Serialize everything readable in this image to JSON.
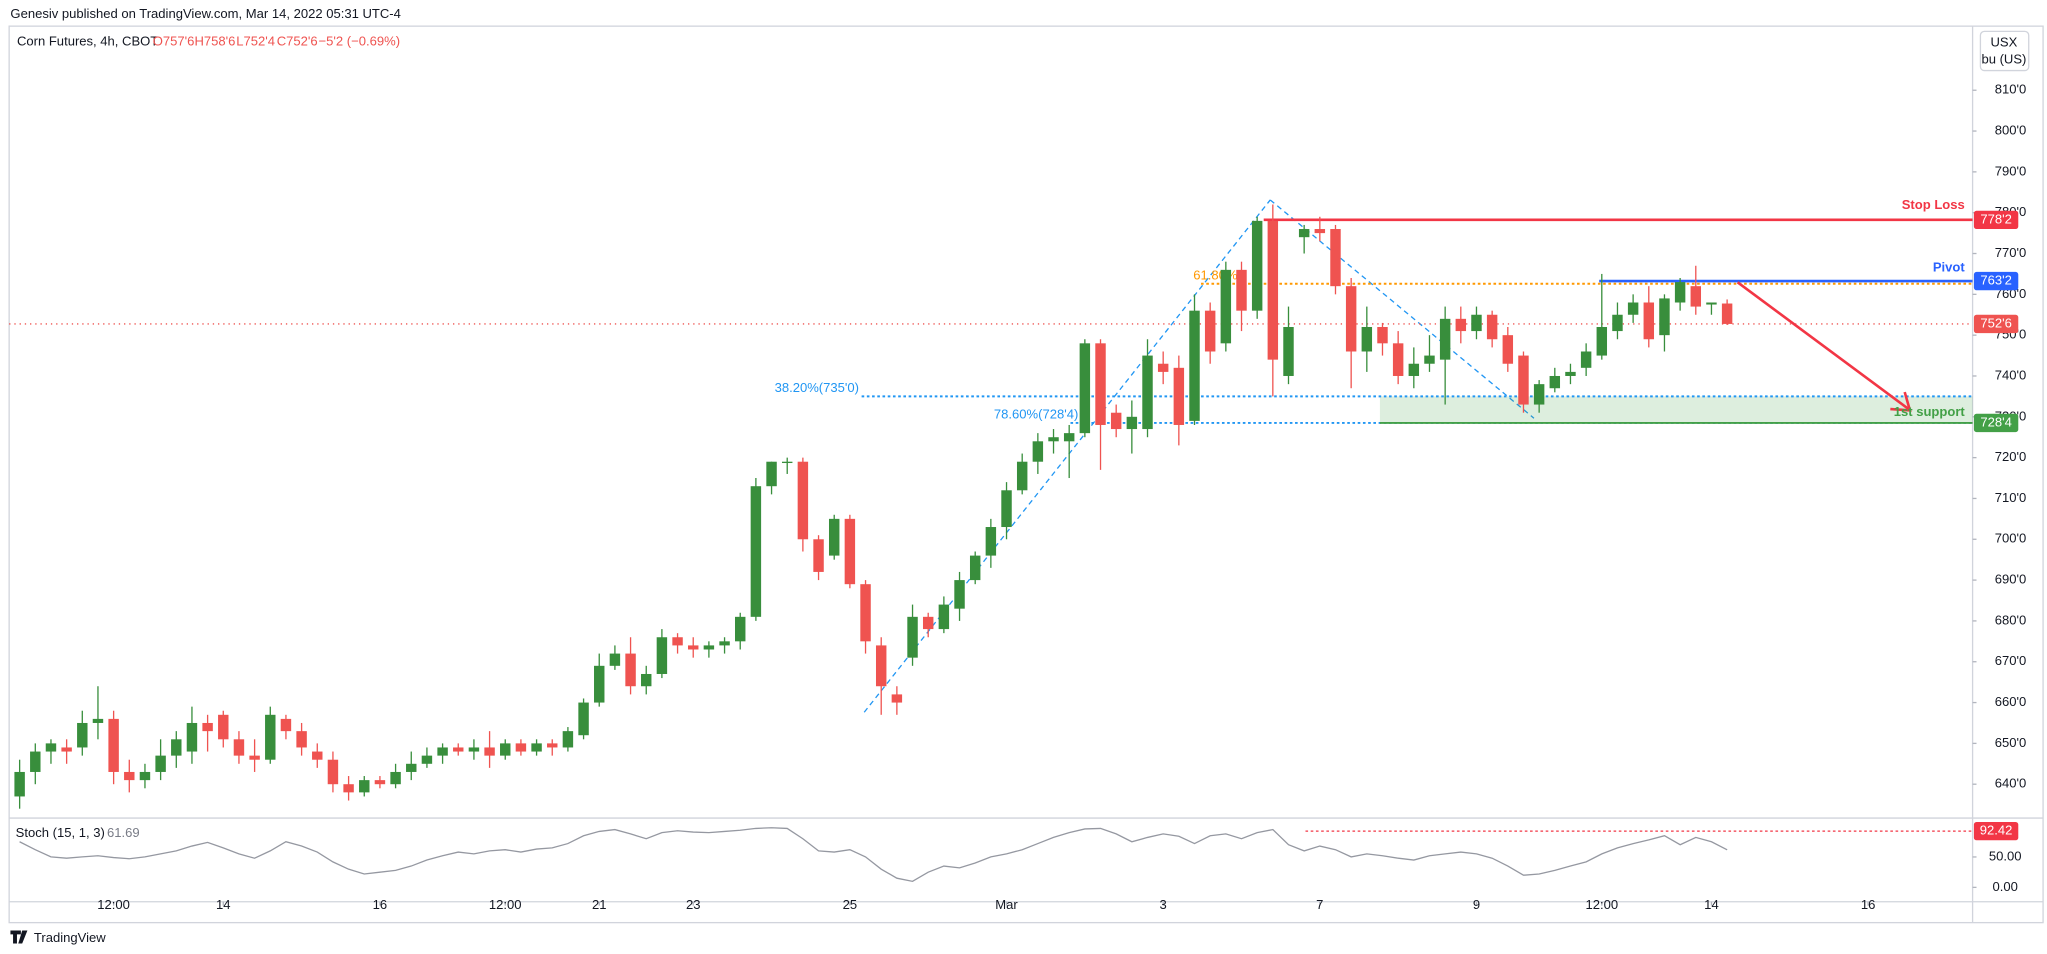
{
  "header": {
    "publisher": "Genesiv published on TradingView.com, Mar 14, 2022 05:31 UTC-4",
    "logo": "TradingView"
  },
  "chart_data": [
    {
      "type": "candlestick",
      "title": "Corn Futures, 4h, CBOT",
      "ohlc_legend": [
        "O757'6",
        "H758'6",
        "L752'4",
        "C752'6",
        "−5'2 (−0.69%)"
      ],
      "currency": "USX",
      "unit": "bu (US)",
      "up_color": "#388e3c",
      "down_color": "#ef5350",
      "open": [
        637,
        643,
        648,
        649,
        649,
        655,
        656,
        643,
        641,
        643,
        647,
        648,
        655,
        657,
        651,
        647,
        646,
        656,
        653,
        648,
        646,
        640,
        638,
        641,
        640,
        643,
        645,
        647,
        649,
        648,
        649,
        647,
        650,
        648,
        650,
        649,
        652,
        660,
        669,
        672,
        664,
        667,
        676,
        674,
        673,
        674,
        675,
        681,
        713,
        719,
        719,
        700,
        696,
        705,
        689,
        674,
        662,
        671,
        681,
        678,
        683,
        690,
        696,
        703,
        712,
        719,
        724,
        724,
        726,
        748,
        731,
        727,
        727,
        743,
        742,
        729,
        756,
        748,
        766,
        756,
        778,
        740,
        774,
        776,
        776,
        762,
        746,
        752,
        748,
        740,
        743,
        744,
        754,
        751,
        755,
        750,
        745,
        733,
        737,
        740,
        742,
        745,
        751,
        755,
        758,
        750,
        758,
        762,
        757.5,
        757.75
      ],
      "high": [
        646,
        650,
        651,
        651,
        658,
        664,
        658,
        646,
        645,
        651,
        653,
        659,
        657,
        658,
        653,
        651,
        659,
        657,
        655,
        650,
        648,
        642,
        642,
        642,
        645,
        648,
        649,
        650,
        650,
        651,
        653,
        651,
        651,
        651,
        651,
        654,
        661,
        672,
        674,
        676,
        669,
        678,
        677,
        676,
        675,
        676,
        682,
        715,
        719,
        720,
        720,
        701,
        706,
        706,
        690,
        676,
        664,
        684,
        682,
        686,
        692,
        697,
        705,
        714,
        721,
        726,
        727,
        728,
        749,
        749,
        733,
        734,
        749,
        746,
        745,
        760,
        758,
        768,
        768,
        779,
        782,
        757,
        777,
        779,
        777,
        764,
        757,
        753,
        751,
        747,
        750,
        757,
        757,
        757,
        756,
        752,
        746,
        739,
        742,
        743,
        748,
        765,
        758,
        760,
        762,
        760,
        764,
        767,
        758,
        758.75
      ],
      "low": [
        634,
        640,
        645,
        645,
        647,
        651,
        640,
        638,
        639,
        641,
        644,
        645,
        648,
        649,
        645,
        643,
        645,
        651,
        647,
        644,
        638,
        636,
        637,
        639,
        639,
        641,
        644,
        645,
        647,
        646,
        644,
        646,
        647,
        647,
        647,
        648,
        651,
        659,
        668,
        662,
        662,
        666,
        672,
        671,
        671,
        672,
        673,
        680,
        711,
        716,
        697,
        690,
        695,
        688,
        672,
        657,
        657,
        669,
        676,
        677,
        680,
        689,
        693,
        700,
        711,
        716,
        721,
        715,
        725,
        717,
        725,
        721,
        725,
        738,
        723,
        728,
        743,
        746,
        751,
        754,
        735,
        738,
        770,
        773,
        760,
        737,
        741,
        745,
        738,
        737,
        741,
        733,
        748,
        749,
        747,
        741,
        731,
        731,
        736,
        738,
        740,
        744,
        749,
        753,
        747,
        746,
        756,
        755,
        755,
        752.5
      ],
      "close": [
        643,
        648,
        650,
        648,
        655,
        656,
        643,
        641,
        643,
        647,
        651,
        655,
        653,
        651,
        647,
        646,
        657,
        653,
        649,
        646,
        640,
        638,
        641,
        640,
        643,
        645,
        647,
        649,
        648,
        649,
        647,
        650,
        648,
        650,
        649,
        653,
        660,
        669,
        672,
        664,
        667,
        676,
        674,
        673,
        674,
        675,
        681,
        713,
        719,
        719,
        700,
        692,
        705,
        689,
        675,
        664,
        660,
        681,
        678,
        684,
        690,
        696,
        703,
        712,
        719,
        724,
        725,
        726,
        748,
        728,
        727,
        730,
        745,
        741,
        728,
        756,
        746,
        766,
        756,
        778,
        744,
        752,
        776,
        775,
        762,
        746,
        752,
        748,
        740,
        743,
        745,
        754,
        751,
        755,
        749,
        743,
        733,
        738,
        740,
        741,
        746,
        752,
        755,
        758,
        749,
        759,
        763,
        757,
        758,
        752.75
      ],
      "xlim": [
        -0.67,
        124.67
      ],
      "xticks": [
        {
          "value": 6,
          "label": "12:00"
        },
        {
          "value": 13,
          "label": "14"
        },
        {
          "value": 23,
          "label": "16"
        },
        {
          "value": 31,
          "label": "12:00"
        },
        {
          "value": 37,
          "label": "21"
        },
        {
          "value": 43,
          "label": "23"
        },
        {
          "value": 53,
          "label": "25"
        },
        {
          "value": 63,
          "label": "Mar"
        },
        {
          "value": 73,
          "label": "3"
        },
        {
          "value": 83,
          "label": "7"
        },
        {
          "value": 93,
          "label": "9"
        },
        {
          "value": 101,
          "label": "12:00"
        },
        {
          "value": 108,
          "label": "14"
        },
        {
          "value": 118,
          "label": "16"
        }
      ],
      "ylim": [
        631.7,
        825.7
      ],
      "yticks": [
        {
          "value": 640,
          "label": "640'0"
        },
        {
          "value": 650,
          "label": "650'0"
        },
        {
          "value": 660,
          "label": "660'0"
        },
        {
          "value": 670,
          "label": "670'0"
        },
        {
          "value": 680,
          "label": "680'0"
        },
        {
          "value": 690,
          "label": "690'0"
        },
        {
          "value": 700,
          "label": "700'0"
        },
        {
          "value": 710,
          "label": "710'0"
        },
        {
          "value": 720,
          "label": "720'0"
        },
        {
          "value": 730,
          "label": "730'0"
        },
        {
          "value": 740,
          "label": "740'0"
        },
        {
          "value": 750,
          "label": "750'0"
        },
        {
          "value": 760,
          "label": "760'0"
        },
        {
          "value": 770,
          "label": "770'0"
        },
        {
          "value": 780,
          "label": "780'0"
        },
        {
          "value": 790,
          "label": "790'0"
        },
        {
          "value": 800,
          "label": "800'0"
        },
        {
          "value": 810,
          "label": "810'0"
        }
      ],
      "levels": [
        {
          "name": "Stop Loss",
          "value": 778.25,
          "label": "778'2",
          "color": "#f23645"
        },
        {
          "name": "Pivot",
          "value": 763.25,
          "label": "763'2",
          "color": "#2962ff"
        },
        {
          "value": 752.75,
          "label": "752'6",
          "color": "#ef5350"
        },
        {
          "name": "1st support",
          "value": 728.5,
          "label": "728'4",
          "color": "#43a047"
        }
      ],
      "fib_levels": [
        {
          "name": "38.20%(735'0)",
          "value": 735,
          "color": "#2196f3"
        },
        {
          "name": "61.80%",
          "value": 762.6,
          "color": "#ff9800"
        },
        {
          "name": "78.60%(728'4)",
          "value": 728.5,
          "color": "#2196f3"
        }
      ]
    },
    {
      "type": "line",
      "title": "Stoch (15, 1, 3)",
      "color": "#9598a1",
      "values": [
        75,
        62,
        50,
        48,
        50,
        52,
        49,
        47,
        50,
        55,
        60,
        68,
        74,
        65,
        55,
        48,
        60,
        75,
        68,
        58,
        42,
        30,
        22,
        25,
        28,
        35,
        45,
        52,
        58,
        55,
        60,
        62,
        58,
        63,
        65,
        72,
        85,
        92,
        95,
        88,
        80,
        90,
        93,
        91,
        90,
        92,
        94,
        97,
        98,
        97,
        80,
        60,
        58,
        62,
        50,
        30,
        15,
        10,
        25,
        35,
        32,
        40,
        50,
        55,
        62,
        72,
        82,
        90,
        96,
        97,
        88,
        75,
        82,
        88,
        84,
        72,
        85,
        88,
        80,
        90,
        95,
        70,
        60,
        68,
        62,
        50,
        55,
        52,
        48,
        45,
        52,
        55,
        58,
        55,
        48,
        35,
        20,
        22,
        28,
        35,
        42,
        55,
        65,
        72,
        78,
        85,
        70,
        82,
        75,
        61.69
      ],
      "ylim": [
        -23.6,
        113.9
      ],
      "yticks": [
        {
          "value": 0,
          "label": "0.00"
        },
        {
          "value": 50,
          "label": "50.00"
        }
      ],
      "marker_level": 92.42,
      "marker_color": "#f23645"
    }
  ]
}
